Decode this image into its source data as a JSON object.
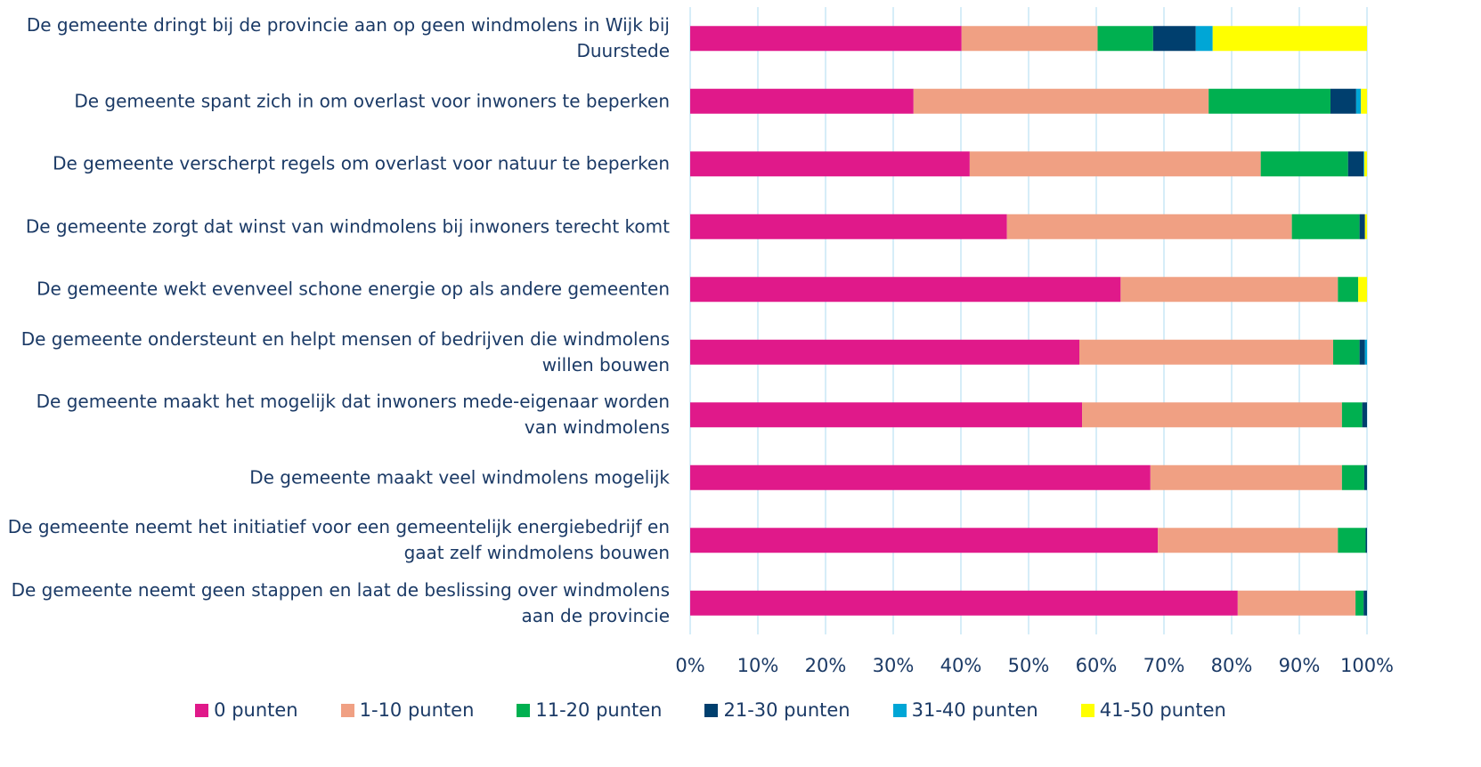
{
  "chart_data": {
    "type": "stacked-bar-horizontal",
    "categories": [
      "De gemeente dringt bij de provincie aan op geen windmolens in Wijk bij Duurstede",
      "De gemeente spant zich in om overlast voor inwoners te beperken",
      "De gemeente verscherpt regels om overlast voor natuur te beperken",
      "De gemeente zorgt dat winst van windmolens bij inwoners terecht komt",
      "De gemeente wekt evenveel schone energie op als andere gemeenten",
      "De gemeente ondersteunt en helpt mensen of bedrijven die windmolens willen bouwen",
      "De gemeente maakt het mogelijk dat inwoners mede-eigenaar worden van windmolens",
      "De gemeente maakt veel windmolens mogelijk",
      "De gemeente neemt het initiatief voor een gemeentelijk energiebedrijf en gaat zelf windmolens bouwen",
      "De gemeente neemt geen stappen en laat de beslissing over windmolens aan de provincie"
    ],
    "series": [
      {
        "name": "0 punten",
        "color": "#e0198a",
        "values": [
          40.1,
          33.0,
          41.3,
          46.8,
          63.6,
          57.5,
          57.9,
          68.0,
          69.1,
          80.9
        ]
      },
      {
        "name": "1-10 punten",
        "color": "#f0a083",
        "values": [
          20.1,
          43.6,
          43.0,
          42.1,
          32.1,
          37.5,
          38.4,
          28.3,
          26.6,
          17.4
        ]
      },
      {
        "name": "11-20 punten",
        "color": "#00b050",
        "values": [
          8.2,
          18.0,
          12.9,
          10.0,
          3.0,
          3.9,
          3.0,
          3.3,
          4.1,
          1.2
        ]
      },
      {
        "name": "21-30 punten",
        "color": "#003f6e",
        "values": [
          6.3,
          3.8,
          2.3,
          0.8,
          0,
          0.8,
          0.7,
          0.4,
          0.2,
          0.5
        ]
      },
      {
        "name": "31-40 punten",
        "color": "#00a6d6",
        "values": [
          2.5,
          0.7,
          0.1,
          0,
          0,
          0.3,
          0,
          0,
          0,
          0
        ]
      },
      {
        "name": "41-50 punten",
        "color": "#ffff00",
        "values": [
          22.8,
          0.9,
          0.4,
          0.3,
          1.3,
          0,
          0,
          0,
          0,
          0
        ]
      }
    ],
    "xlim": [
      0,
      100
    ],
    "xticks": [
      {
        "value": 0,
        "label": "0%"
      },
      {
        "value": 10,
        "label": "10%"
      },
      {
        "value": 20,
        "label": "20%"
      },
      {
        "value": 30,
        "label": "30%"
      },
      {
        "value": 40,
        "label": "40%"
      },
      {
        "value": 50,
        "label": "50%"
      },
      {
        "value": 60,
        "label": "60%"
      },
      {
        "value": 70,
        "label": "70%"
      },
      {
        "value": 80,
        "label": "80%"
      },
      {
        "value": 90,
        "label": "90%"
      },
      {
        "value": 100,
        "label": "100%"
      }
    ],
    "grid": true,
    "legend": "bottom"
  }
}
